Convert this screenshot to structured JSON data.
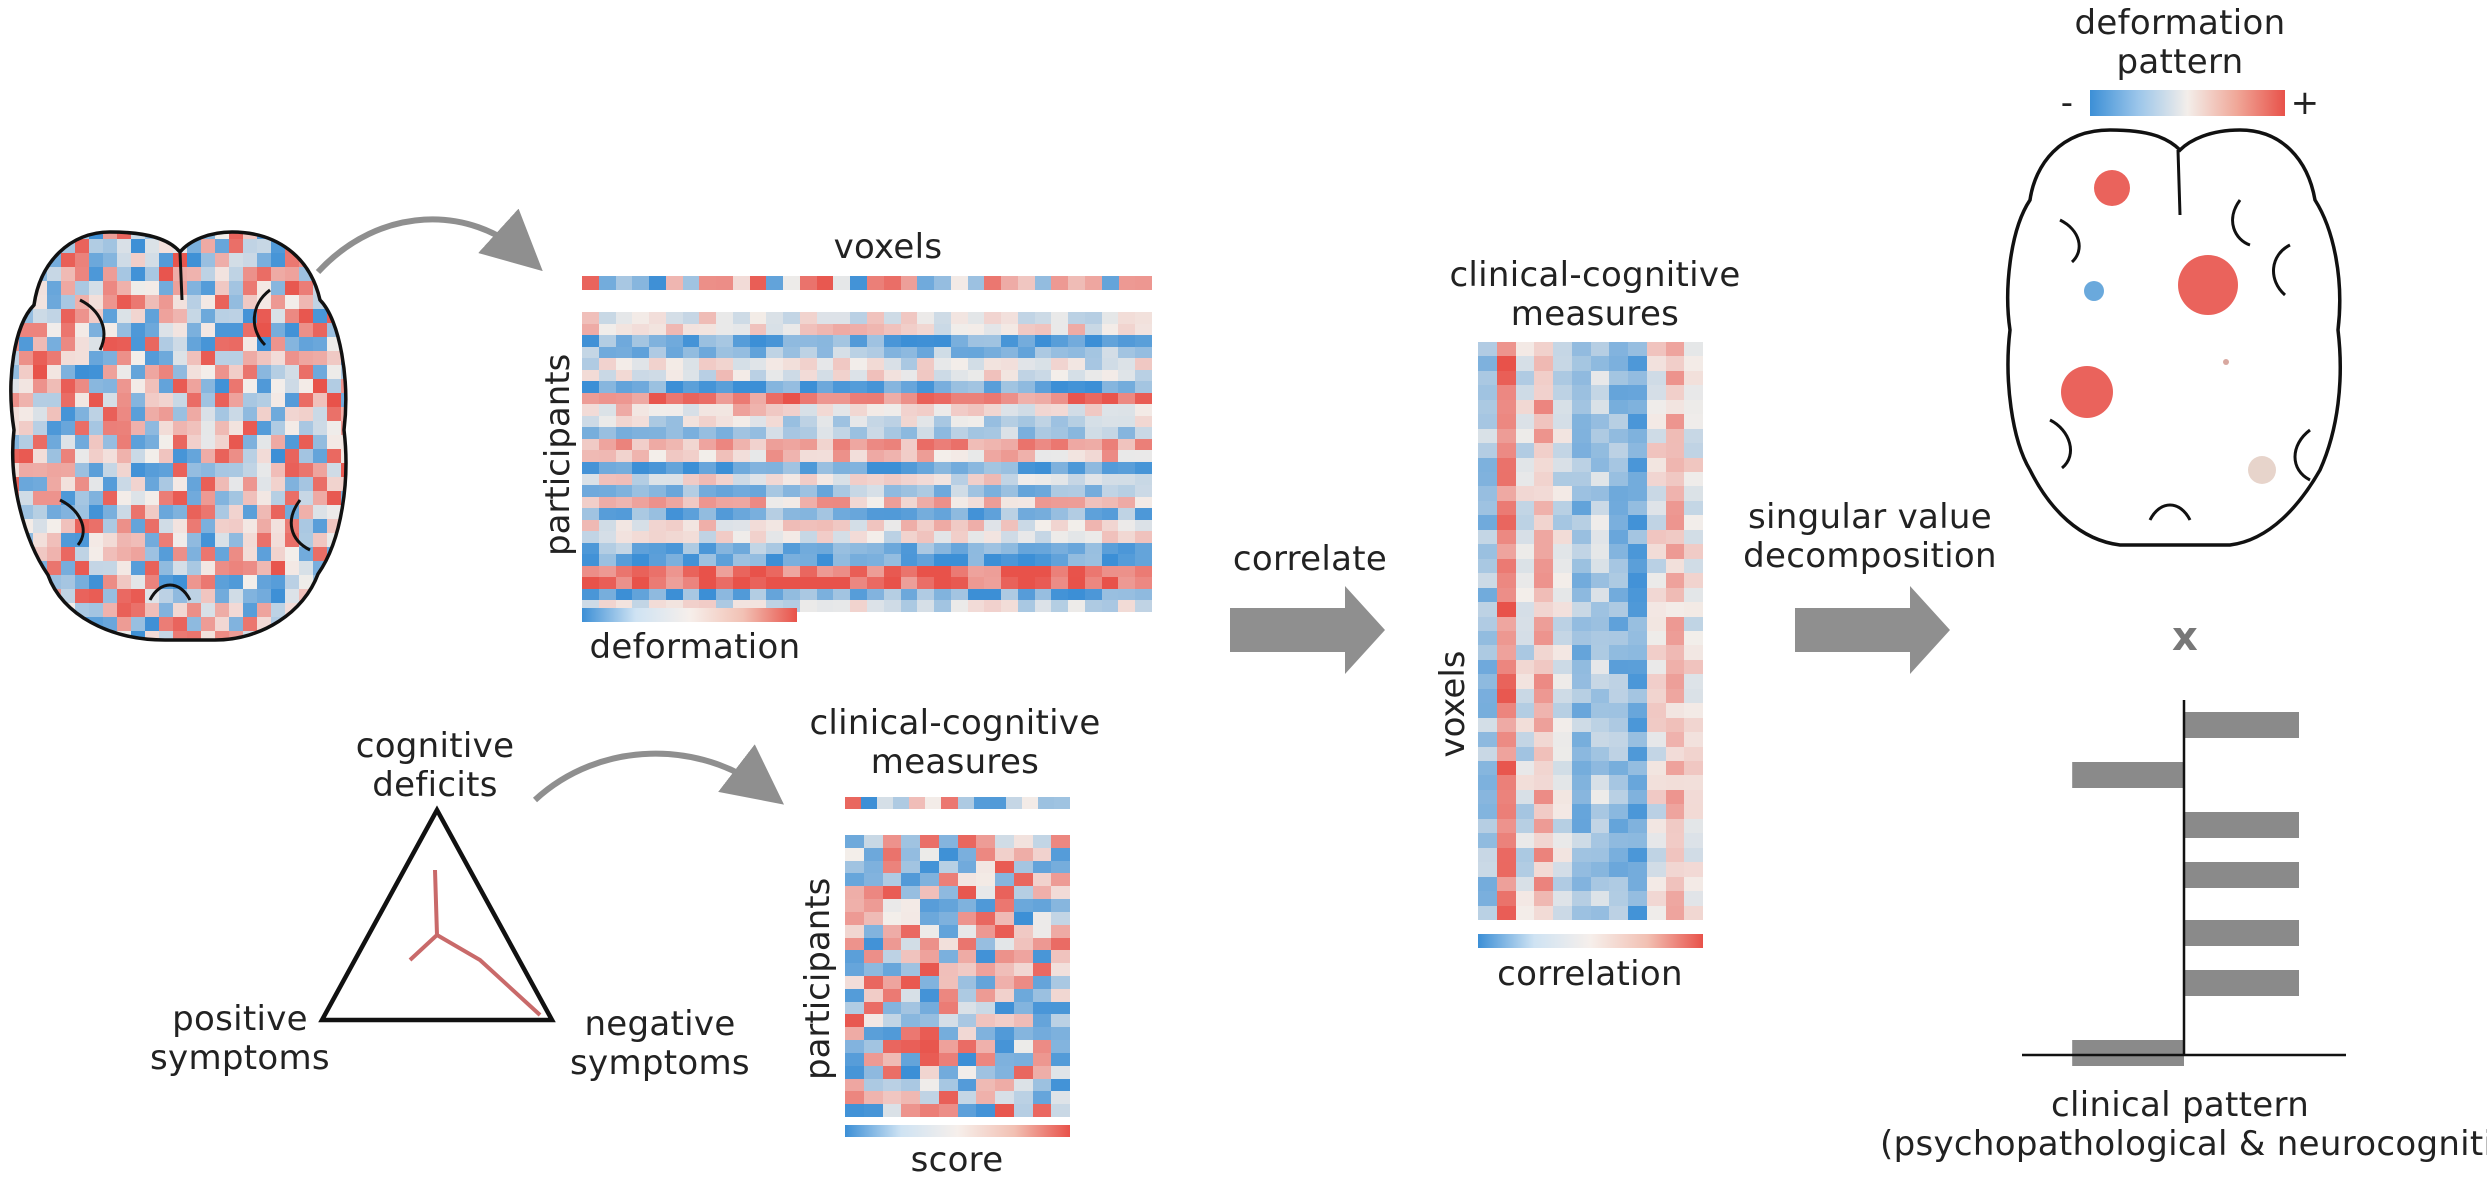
{
  "labels": {
    "voxels_top": "voxels",
    "participants_top": "participants",
    "deformation": "deformation",
    "clinical_measures_bottom": [
      "clinical-cognitive",
      "measures"
    ],
    "participants_bottom": "participants",
    "score": "score",
    "cognitive_deficits": [
      "cognitive",
      "deficits"
    ],
    "positive_symptoms": [
      "positive",
      "symptoms"
    ],
    "negative_symptoms": [
      "negative",
      "symptoms"
    ],
    "correlate": "correlate",
    "clinical_measures_mid": [
      "clinical-cognitive",
      "measures"
    ],
    "voxels_mid": "voxels",
    "correlation": "correlation",
    "svd": [
      "singular value",
      "decomposition"
    ],
    "deformation_pattern": [
      "deformation",
      "pattern"
    ],
    "legend_minus": "-",
    "legend_plus": "+",
    "times": "x",
    "clinical_pattern": [
      "clinical pattern",
      "(psychopathological & neurocognitive)"
    ]
  },
  "colors": {
    "blue": "#3c8fd6",
    "red": "#e8524a",
    "neutral": "#f3eeea",
    "arrow": "#8f8f8f",
    "bar": "#8a8a8a"
  },
  "icons": [
    "brain-heatmap-icon",
    "brain-outline-icon",
    "triangle-icon",
    "curved-arrow-icon",
    "block-arrow-icon"
  ],
  "clinical_pattern_bars": [
    0.72,
    -0.7,
    0.72,
    0.72,
    0.72,
    0.72,
    -0.7
  ]
}
